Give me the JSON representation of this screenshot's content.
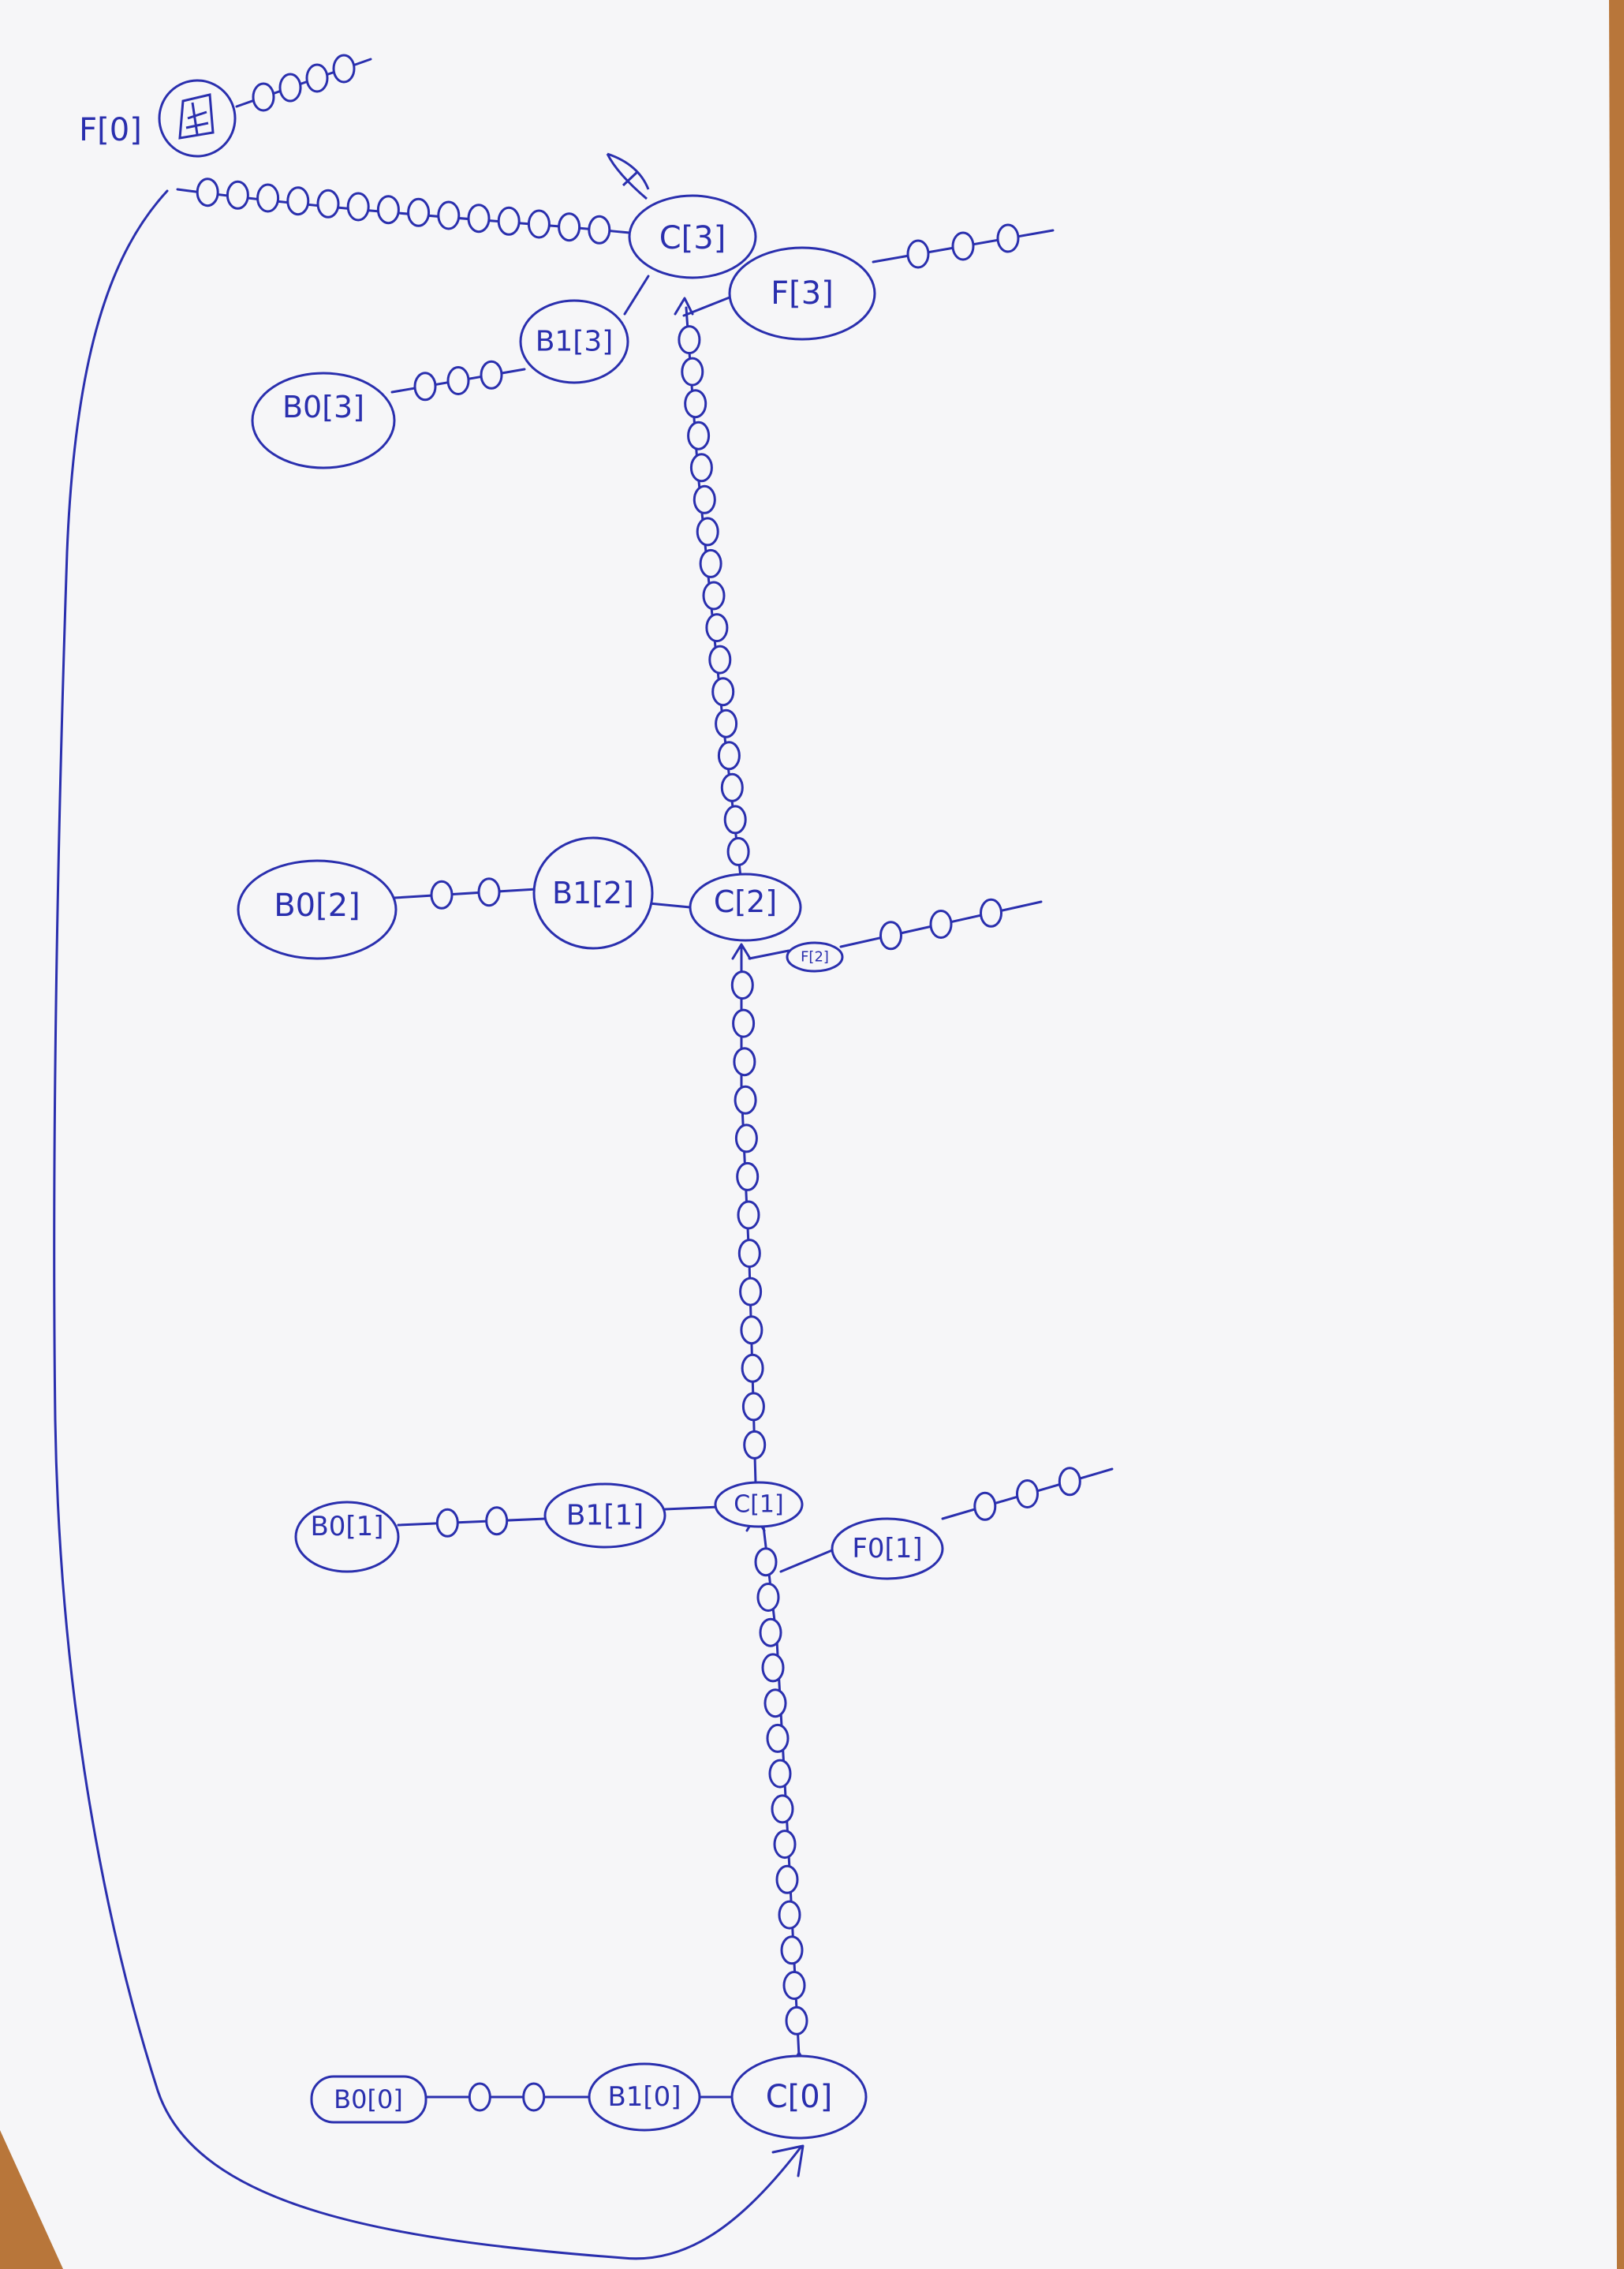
{
  "diagram": {
    "ink_color": "#2a2fae",
    "paper_color": "#f6f6f8",
    "background_color": "#b8763a",
    "nodes": {
      "f0": "F[0]",
      "c3": "C[3]",
      "f3": "F[3]",
      "b13": "B1[3]",
      "b03": "B0[3]",
      "b02": "B0[2]",
      "b12": "B1[2]",
      "c2": "C[2]",
      "f2": "F[2]",
      "b01": "B0[1]",
      "b11": "B1[1]",
      "c1": "C[1]",
      "f1": "F0[1]",
      "b00": "B0[0]",
      "b10": "B1[0]",
      "c0": "C[0]"
    },
    "sketches": {
      "f0_inner": "sketch-icon",
      "c3_top": "rocket-icon"
    }
  }
}
